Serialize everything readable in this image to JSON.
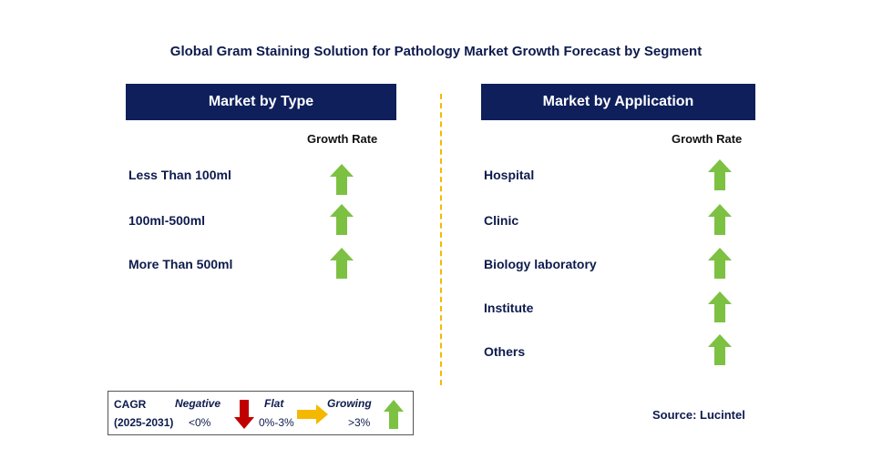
{
  "title": "Global Gram Staining Solution for Pathology Market Growth Forecast by Segment",
  "colors": {
    "header_bg": "#0e1f5b",
    "growing": "#7dc143",
    "negative": "#c00000",
    "flat": "#f5b800",
    "divider": "#f5b800"
  },
  "left_panel": {
    "header": "Market by Type",
    "growth_label": "Growth Rate",
    "items": [
      {
        "label": "Less Than 100ml",
        "trend": "up-arrow-icon"
      },
      {
        "label": "100ml-500ml",
        "trend": "up-arrow-icon"
      },
      {
        "label": "More Than 500ml",
        "trend": "up-arrow-icon"
      }
    ]
  },
  "right_panel": {
    "header": "Market by Application",
    "growth_label": "Growth Rate",
    "items": [
      {
        "label": "Hospital",
        "trend": "up-arrow-icon"
      },
      {
        "label": "Clinic",
        "trend": "up-arrow-icon"
      },
      {
        "label": "Biology laboratory",
        "trend": "up-arrow-icon"
      },
      {
        "label": "Institute",
        "trend": "up-arrow-icon"
      },
      {
        "label": "Others",
        "trend": "up-arrow-icon"
      }
    ]
  },
  "legend": {
    "cagr": "CAGR",
    "period": "(2025-2031)",
    "negative": {
      "label": "Negative",
      "range": "<0%"
    },
    "flat": {
      "label": "Flat",
      "range": "0%-3%"
    },
    "growing": {
      "label": "Growing",
      "range": ">3%"
    }
  },
  "source": "Source: Lucintel"
}
